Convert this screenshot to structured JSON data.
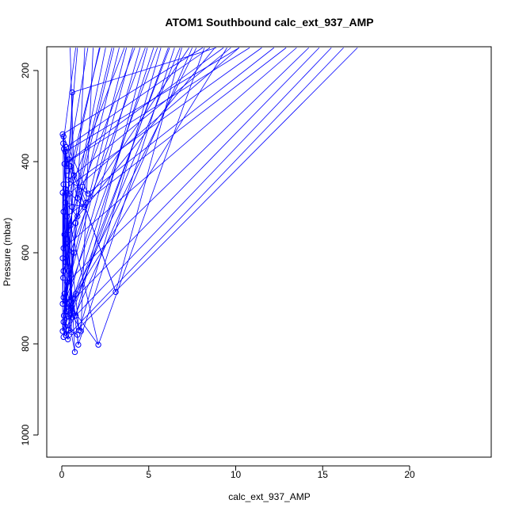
{
  "chart_data": {
    "type": "line",
    "title": "ATOM1 Southbound calc_ext_937_AMP",
    "xlabel": "calc_ext_937_AMP",
    "ylabel": "Pressure (mbar)",
    "xlim": [
      0,
      24
    ],
    "ylim": [
      1040,
      150
    ],
    "y_reversed": true,
    "grid": false,
    "legend": "none",
    "series_color": "#0000ff",
    "x_ticks": [
      0,
      5,
      10,
      15,
      20
    ],
    "y_ticks": [
      200,
      400,
      600,
      800,
      1000
    ],
    "x_tick_labels": [
      "0",
      "5",
      "10",
      "15",
      "20"
    ],
    "y_tick_labels": [
      "200",
      "400",
      "600",
      "800",
      "1000"
    ],
    "points": [
      [
        0.05,
        340
      ],
      [
        0.1,
        345
      ],
      [
        0.08,
        360
      ],
      [
        0.12,
        372
      ],
      [
        0.2,
        378
      ],
      [
        0.25,
        368
      ],
      [
        0.6,
        248
      ],
      [
        0.4,
        395
      ],
      [
        0.5,
        410
      ],
      [
        0.15,
        405
      ],
      [
        0.3,
        420
      ],
      [
        0.7,
        430
      ],
      [
        0.35,
        440
      ],
      [
        0.1,
        450
      ],
      [
        0.2,
        460
      ],
      [
        0.45,
        470
      ],
      [
        0.05,
        468
      ],
      [
        0.9,
        480
      ],
      [
        1.2,
        455
      ],
      [
        1.5,
        470
      ],
      [
        1.4,
        490
      ],
      [
        1.3,
        500
      ],
      [
        0.2,
        490
      ],
      [
        0.1,
        510
      ],
      [
        0.3,
        520
      ],
      [
        0.8,
        535
      ],
      [
        0.4,
        550
      ],
      [
        0.15,
        560
      ],
      [
        0.25,
        580
      ],
      [
        0.1,
        590
      ],
      [
        0.05,
        612
      ],
      [
        0.2,
        620
      ],
      [
        0.1,
        640
      ],
      [
        0.08,
        655
      ],
      [
        0.3,
        665
      ],
      [
        0.15,
        690
      ],
      [
        0.1,
        698
      ],
      [
        0.2,
        705
      ],
      [
        0.05,
        712
      ],
      [
        0.3,
        718
      ],
      [
        0.25,
        728
      ],
      [
        0.12,
        738
      ],
      [
        0.35,
        740
      ],
      [
        0.6,
        742
      ],
      [
        0.8,
        738
      ],
      [
        0.1,
        752
      ],
      [
        0.2,
        762
      ],
      [
        0.05,
        772
      ],
      [
        0.4,
        770
      ],
      [
        0.55,
        774
      ],
      [
        1.0,
        770
      ],
      [
        1.1,
        772
      ],
      [
        0.25,
        782
      ],
      [
        0.1,
        785
      ],
      [
        0.35,
        790
      ],
      [
        0.9,
        780
      ],
      [
        0.95,
        802
      ],
      [
        2.1,
        802
      ],
      [
        0.75,
        818
      ],
      [
        3.1,
        686
      ],
      [
        0.6,
        500
      ],
      [
        0.9,
        520
      ],
      [
        0.5,
        540
      ],
      [
        0.7,
        600
      ],
      [
        0.4,
        640
      ],
      [
        0.6,
        700
      ],
      [
        0.55,
        720
      ],
      [
        0.8,
        690
      ]
    ],
    "line_anchors": {
      "top_row_pressure": 150,
      "top_x_values": [
        0.8,
        1.5,
        2.2,
        3.0,
        3.6,
        4.2,
        4.8,
        5.5,
        6.2,
        6.8,
        7.5,
        8.2,
        8.8,
        9.5,
        10.2,
        10.8,
        11.5,
        12.2,
        12.9,
        13.5,
        14.2,
        14.8,
        15.5,
        16.2,
        17.0
      ]
    }
  }
}
